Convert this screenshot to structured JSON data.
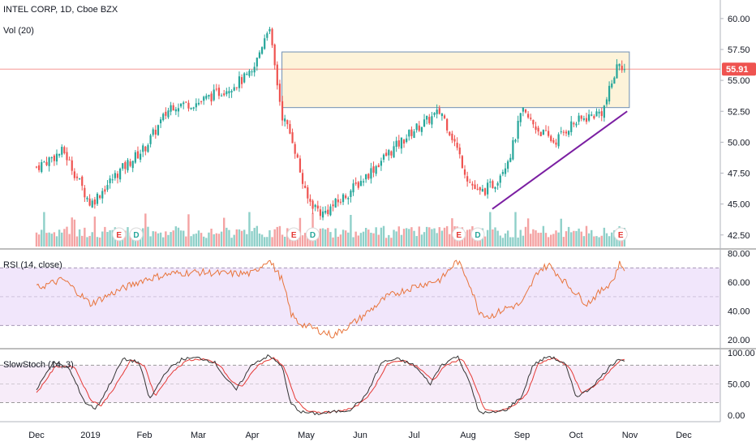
{
  "header": {
    "symbol_line": "INTEL CORP, 1D, Cboe BZX",
    "volume_label": "Vol (20)",
    "rsi_label": "RSI (14, close)",
    "stoch_label": "SlowStoch (14, 3)"
  },
  "colors": {
    "up": "#26a69a",
    "down": "#ef5350",
    "vol_up": "#8fd0c9",
    "vol_down": "#f4a3a3",
    "zone_fill": "#fdf0cf",
    "zone_border": "#6f8fb3",
    "trendline": "#7b1fa2",
    "rsi_line": "#e8743b",
    "rsi_band": "#f1e6fb",
    "stoch_k": "#333333",
    "stoch_d": "#e53935",
    "stoch_band": "#f7ecf9",
    "price_line": "#ef5350",
    "event_badge": "#ffffff",
    "earnings_text": "#e53935",
    "dividend_text": "#26a69a"
  },
  "chart_data": {
    "type": "candlestick",
    "title": "INTEL CORP, 1D, Cboe BZX",
    "x_tick_labels": [
      "Dec",
      "2019",
      "Feb",
      "Mar",
      "Apr",
      "May",
      "Jun",
      "Jul",
      "Aug",
      "Sep",
      "Oct",
      "Nov",
      "Dec"
    ],
    "price_axis": {
      "ylim": [
        41.5,
        61.5
      ],
      "ticks": [
        "60.00",
        "57.50",
        "55.00",
        "52.50",
        "50.00",
        "47.50",
        "45.00",
        "42.50"
      ],
      "last_price": "55.91"
    },
    "price_path": {
      "months": [
        0,
        0.5,
        1,
        1.5,
        2,
        2.5,
        3,
        3.5,
        4,
        4.3,
        4.55,
        4.75,
        5,
        5.3,
        5.6,
        6,
        6.5,
        7,
        7.5,
        7.75,
        8,
        8.2,
        8.5,
        8.8,
        9,
        9.3,
        9.6,
        9.9,
        10.2,
        10.5,
        10.8,
        10.9
      ],
      "close": [
        48.0,
        49.3,
        45.0,
        47.5,
        49.5,
        53.0,
        53.2,
        54.3,
        55.5,
        59.5,
        52.2,
        50.2,
        45.5,
        44.2,
        45.2,
        46.8,
        49.0,
        51.0,
        52.5,
        50.0,
        47.0,
        45.8,
        46.7,
        49.2,
        52.5,
        51.0,
        50.0,
        51.4,
        52.0,
        52.5,
        56.6,
        55.91
      ]
    },
    "resistance_zone": {
      "price_low": 52.8,
      "price_high": 57.3,
      "from_month": 4.55,
      "to_month": 10.9
    },
    "trendline": {
      "from": [
        8.45,
        44.6
      ],
      "to": [
        10.95,
        52.5
      ]
    },
    "events": [
      {
        "month": 1.53,
        "type": "E"
      },
      {
        "month": 1.85,
        "type": "D"
      },
      {
        "month": 4.77,
        "type": "E"
      },
      {
        "month": 5.12,
        "type": "D"
      },
      {
        "month": 7.83,
        "type": "E"
      },
      {
        "month": 8.18,
        "type": "D"
      },
      {
        "month": 10.83,
        "type": "E"
      }
    ],
    "rsi": {
      "ylim": [
        15,
        82
      ],
      "ticks": [
        "80.00",
        "60.00",
        "40.00",
        "20.00"
      ],
      "band": [
        30,
        70
      ],
      "path": [
        [
          0,
          56
        ],
        [
          0.5,
          62
        ],
        [
          1,
          45
        ],
        [
          1.5,
          54
        ],
        [
          2,
          62
        ],
        [
          2.5,
          66
        ],
        [
          3,
          67
        ],
        [
          3.5,
          66
        ],
        [
          4,
          66
        ],
        [
          4.3,
          76
        ],
        [
          4.55,
          62
        ],
        [
          4.72,
          38
        ],
        [
          4.85,
          32
        ],
        [
          5.2,
          27
        ],
        [
          5.5,
          23
        ],
        [
          5.8,
          30
        ],
        [
          6,
          35
        ],
        [
          6.5,
          50
        ],
        [
          7,
          57
        ],
        [
          7.5,
          62
        ],
        [
          7.8,
          75
        ],
        [
          8,
          62
        ],
        [
          8.2,
          40
        ],
        [
          8.4,
          36
        ],
        [
          8.7,
          42
        ],
        [
          9,
          45
        ],
        [
          9.3,
          68
        ],
        [
          9.5,
          72
        ],
        [
          9.8,
          60
        ],
        [
          10.2,
          45
        ],
        [
          10.5,
          55
        ],
        [
          10.7,
          62
        ],
        [
          10.8,
          73
        ],
        [
          10.9,
          70
        ]
      ]
    },
    "stoch": {
      "ylim": [
        -8,
        104
      ],
      "ticks": [
        "100.00",
        "50.00",
        "0.00"
      ],
      "band": [
        20,
        80
      ],
      "k_path": [
        [
          0,
          40
        ],
        [
          0.3,
          85
        ],
        [
          0.6,
          75
        ],
        [
          0.9,
          20
        ],
        [
          1.1,
          10
        ],
        [
          1.3,
          40
        ],
        [
          1.6,
          90
        ],
        [
          1.9,
          85
        ],
        [
          2.1,
          25
        ],
        [
          2.4,
          70
        ],
        [
          2.7,
          90
        ],
        [
          3.0,
          92
        ],
        [
          3.3,
          85
        ],
        [
          3.5,
          60
        ],
        [
          3.7,
          40
        ],
        [
          4.0,
          82
        ],
        [
          4.3,
          95
        ],
        [
          4.55,
          80
        ],
        [
          4.7,
          20
        ],
        [
          4.9,
          5
        ],
        [
          5.2,
          2
        ],
        [
          5.5,
          5
        ],
        [
          5.8,
          8
        ],
        [
          6.1,
          30
        ],
        [
          6.4,
          85
        ],
        [
          6.7,
          90
        ],
        [
          7.0,
          80
        ],
        [
          7.3,
          50
        ],
        [
          7.5,
          80
        ],
        [
          7.8,
          95
        ],
        [
          8.0,
          60
        ],
        [
          8.2,
          5
        ],
        [
          8.4,
          3
        ],
        [
          8.7,
          8
        ],
        [
          9.0,
          30
        ],
        [
          9.2,
          80
        ],
        [
          9.5,
          95
        ],
        [
          9.8,
          82
        ],
        [
          10.0,
          30
        ],
        [
          10.2,
          38
        ],
        [
          10.4,
          55
        ],
        [
          10.6,
          75
        ],
        [
          10.8,
          92
        ],
        [
          10.95,
          84
        ]
      ],
      "d_path": [
        [
          0,
          35
        ],
        [
          0.35,
          78
        ],
        [
          0.7,
          78
        ],
        [
          1.0,
          25
        ],
        [
          1.2,
          15
        ],
        [
          1.45,
          45
        ],
        [
          1.75,
          88
        ],
        [
          2.0,
          80
        ],
        [
          2.2,
          30
        ],
        [
          2.5,
          68
        ],
        [
          2.8,
          88
        ],
        [
          3.1,
          90
        ],
        [
          3.4,
          80
        ],
        [
          3.6,
          55
        ],
        [
          3.8,
          45
        ],
        [
          4.1,
          80
        ],
        [
          4.4,
          93
        ],
        [
          4.6,
          75
        ],
        [
          4.8,
          25
        ],
        [
          5.0,
          8
        ],
        [
          5.3,
          4
        ],
        [
          5.6,
          6
        ],
        [
          5.9,
          12
        ],
        [
          6.2,
          35
        ],
        [
          6.5,
          82
        ],
        [
          6.8,
          88
        ],
        [
          7.1,
          75
        ],
        [
          7.35,
          55
        ],
        [
          7.6,
          82
        ],
        [
          7.9,
          90
        ],
        [
          8.1,
          55
        ],
        [
          8.3,
          10
        ],
        [
          8.5,
          5
        ],
        [
          8.8,
          12
        ],
        [
          9.1,
          35
        ],
        [
          9.3,
          82
        ],
        [
          9.6,
          92
        ],
        [
          9.9,
          75
        ],
        [
          10.1,
          35
        ],
        [
          10.3,
          45
        ],
        [
          10.5,
          58
        ],
        [
          10.7,
          78
        ],
        [
          10.85,
          90
        ],
        [
          10.95,
          88
        ]
      ]
    }
  }
}
